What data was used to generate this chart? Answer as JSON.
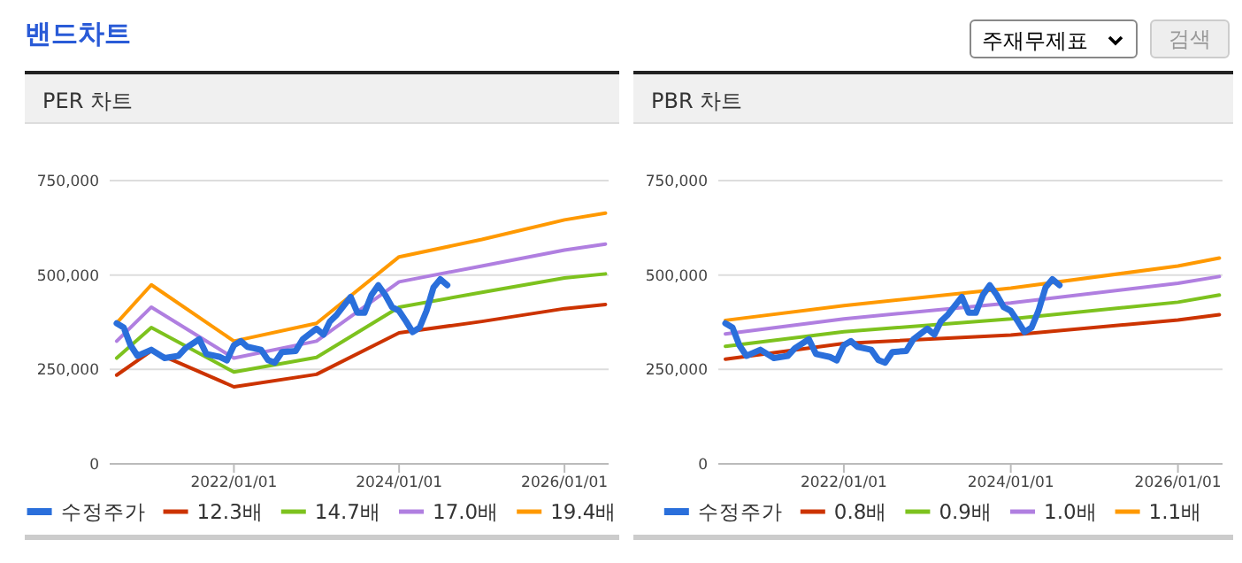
{
  "chart_data": [
    {
      "type": "other",
      "title": "밴드차트",
      "annotations": [
        "주재무제표",
        "검색"
      ]
    },
    {
      "type": "line",
      "title": "PER 차트",
      "xlim": [
        "2020-07-01",
        "2026-07-15"
      ],
      "ylim": [
        0,
        750000
      ],
      "xticks": [
        {
          "value": "2022-01-01",
          "label": "2022/01/01"
        },
        {
          "value": "2024-01-01",
          "label": "2024/01/01"
        },
        {
          "value": "2026-01-01",
          "label": "2026/01/01"
        }
      ],
      "yticks": [
        {
          "value": 0,
          "label": "0"
        },
        {
          "value": 250000,
          "label": "250,000"
        },
        {
          "value": 500000,
          "label": "500,000"
        },
        {
          "value": 750000,
          "label": "750,000"
        }
      ],
      "grid": "y",
      "legend": "bottom",
      "marker": "none",
      "line_style": "solid",
      "series": [
        {
          "name": "수정주가",
          "color": "#2a6fdb",
          "x": [
            "2020-08",
            "2020-09",
            "2020-10",
            "2020-11",
            "2021-01",
            "2021-03",
            "2021-05",
            "2021-06",
            "2021-08",
            "2021-09",
            "2021-11",
            "2021-12",
            "2022-01",
            "2022-02",
            "2022-03",
            "2022-05",
            "2022-06",
            "2022-07",
            "2022-08",
            "2022-10",
            "2022-11",
            "2023-01",
            "2023-02",
            "2023-03",
            "2023-04",
            "2023-06",
            "2023-07",
            "2023-08",
            "2023-09",
            "2023-10",
            "2023-11",
            "2023-12",
            "2024-01",
            "2024-02",
            "2024-03",
            "2024-04",
            "2024-05",
            "2024-06",
            "2024-07",
            "2024-08"
          ],
          "values": [
            372000,
            361000,
            314000,
            286000,
            302000,
            280000,
            286000,
            306000,
            330000,
            291000,
            283000,
            274000,
            314000,
            325000,
            310000,
            302000,
            275000,
            268000,
            296000,
            299000,
            330000,
            358000,
            342000,
            377000,
            395000,
            442000,
            400000,
            400000,
            447000,
            473000,
            447000,
            415000,
            405000,
            377000,
            349000,
            361000,
            405000,
            467000,
            489000,
            473000
          ]
        },
        {
          "name": "12.3배",
          "color": "#cc3300",
          "x": [
            "2020-08",
            "2021-01",
            "2022-01",
            "2023-01",
            "2024-01",
            "2025-01",
            "2026-01",
            "2026-07"
          ],
          "values": [
            235000,
            299000,
            204000,
            237000,
            347000,
            377000,
            411000,
            422000
          ]
        },
        {
          "name": "14.7배",
          "color": "#7dc21e",
          "x": [
            "2020-08",
            "2021-01",
            "2022-01",
            "2023-01",
            "2024-01",
            "2025-01",
            "2026-01",
            "2026-07"
          ],
          "values": [
            280000,
            361000,
            243000,
            282000,
            415000,
            454000,
            492000,
            503000
          ]
        },
        {
          "name": "17.0배",
          "color": "#b07fe0",
          "x": [
            "2020-08",
            "2021-01",
            "2022-01",
            "2023-01",
            "2024-01",
            "2025-01",
            "2026-01",
            "2026-07"
          ],
          "values": [
            325000,
            415000,
            280000,
            325000,
            482000,
            524000,
            566000,
            582000
          ]
        },
        {
          "name": "19.4배",
          "color": "#ff9900",
          "x": [
            "2020-08",
            "2021-01",
            "2022-01",
            "2023-01",
            "2024-01",
            "2025-01",
            "2026-01",
            "2026-07"
          ],
          "values": [
            373000,
            474000,
            325000,
            372000,
            548000,
            594000,
            646000,
            664000
          ]
        }
      ]
    },
    {
      "type": "line",
      "title": "PBR 차트",
      "xlim": [
        "2020-07-01",
        "2026-07-15"
      ],
      "ylim": [
        0,
        750000
      ],
      "xticks": [
        {
          "value": "2022-01-01",
          "label": "2022/01/01"
        },
        {
          "value": "2024-01-01",
          "label": "2024/01/01"
        },
        {
          "value": "2026-01-01",
          "label": "2026/01/01"
        }
      ],
      "yticks": [
        {
          "value": 0,
          "label": "0"
        },
        {
          "value": 250000,
          "label": "250,000"
        },
        {
          "value": 500000,
          "label": "500,000"
        },
        {
          "value": 750000,
          "label": "750,000"
        }
      ],
      "grid": "y",
      "legend": "bottom",
      "marker": "none",
      "line_style": "solid",
      "series": [
        {
          "name": "수정주가",
          "color": "#2a6fdb",
          "x": [
            "2020-08",
            "2020-09",
            "2020-10",
            "2020-11",
            "2021-01",
            "2021-03",
            "2021-05",
            "2021-06",
            "2021-08",
            "2021-09",
            "2021-11",
            "2021-12",
            "2022-01",
            "2022-02",
            "2022-03",
            "2022-05",
            "2022-06",
            "2022-07",
            "2022-08",
            "2022-10",
            "2022-11",
            "2023-01",
            "2023-02",
            "2023-03",
            "2023-04",
            "2023-06",
            "2023-07",
            "2023-08",
            "2023-09",
            "2023-10",
            "2023-11",
            "2023-12",
            "2024-01",
            "2024-02",
            "2024-03",
            "2024-04",
            "2024-05",
            "2024-06",
            "2024-07",
            "2024-08"
          ],
          "values": [
            372000,
            361000,
            314000,
            286000,
            302000,
            280000,
            286000,
            306000,
            330000,
            291000,
            283000,
            274000,
            314000,
            325000,
            310000,
            302000,
            275000,
            268000,
            296000,
            299000,
            330000,
            358000,
            342000,
            377000,
            395000,
            442000,
            400000,
            400000,
            447000,
            473000,
            447000,
            415000,
            405000,
            377000,
            349000,
            361000,
            405000,
            467000,
            489000,
            473000
          ]
        },
        {
          "name": "0.8배",
          "color": "#cc3300",
          "x": [
            "2020-08",
            "2022-01",
            "2024-01",
            "2026-01",
            "2026-07"
          ],
          "values": [
            277000,
            319000,
            341000,
            381000,
            395000
          ]
        },
        {
          "name": "0.9배",
          "color": "#7dc21e",
          "x": [
            "2020-08",
            "2022-01",
            "2024-01",
            "2026-01",
            "2026-07"
          ],
          "values": [
            311000,
            350000,
            384000,
            428000,
            447000
          ]
        },
        {
          "name": "1.0배",
          "color": "#b07fe0",
          "x": [
            "2020-08",
            "2022-01",
            "2024-01",
            "2026-01",
            "2026-07"
          ],
          "values": [
            344000,
            384000,
            426000,
            478000,
            496000
          ]
        },
        {
          "name": "1.1배",
          "color": "#ff9900",
          "x": [
            "2020-08",
            "2022-01",
            "2024-01",
            "2026-01",
            "2026-07"
          ],
          "values": [
            380000,
            419000,
            465000,
            524000,
            545000
          ]
        }
      ]
    }
  ]
}
